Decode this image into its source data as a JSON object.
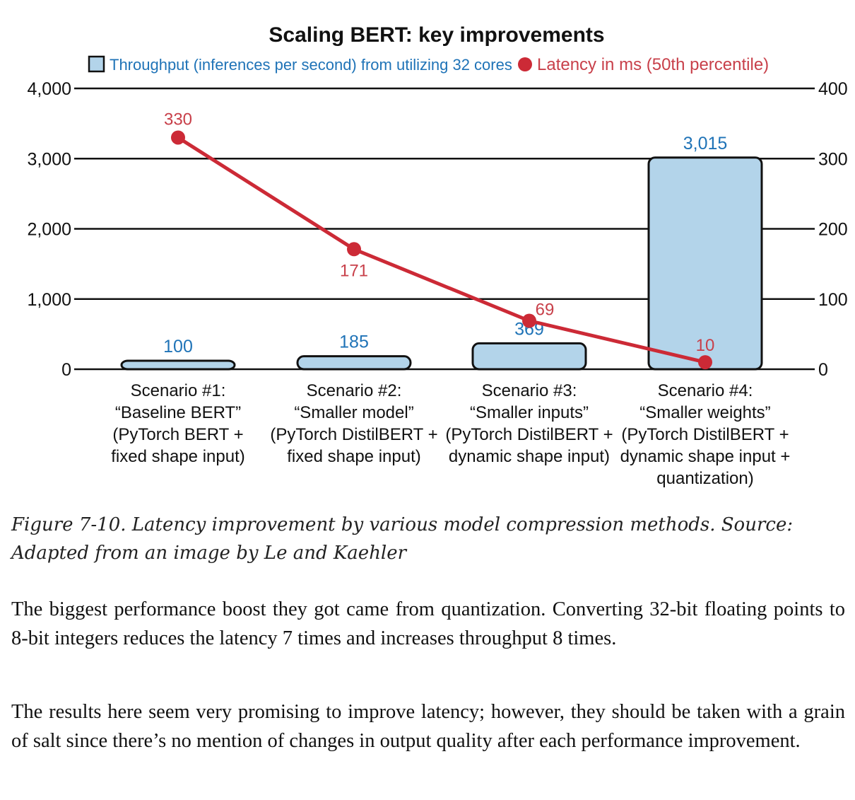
{
  "chart_data": {
    "type": "bar",
    "title": "Scaling BERT: key improvements",
    "categories": [
      [
        "Scenario #1:",
        "“Baseline BERT”",
        "(PyTorch BERT +",
        "fixed shape input)"
      ],
      [
        "Scenario #2:",
        "“Smaller model”",
        "(PyTorch DistilBERT +",
        "fixed shape input)"
      ],
      [
        "Scenario #3:",
        "“Smaller inputs”",
        "(PyTorch DistilBERT +",
        "dynamic shape input)"
      ],
      [
        "Scenario #4:",
        "“Smaller weights”",
        "(PyTorch DistilBERT +",
        "dynamic shape input +",
        "quantization)"
      ]
    ],
    "series": [
      {
        "name": "Throughput (inferences per second) from utilizing 32 cores",
        "kind": "bar",
        "axis": "left",
        "values": [
          100,
          185,
          369,
          3015
        ],
        "labels": [
          "100",
          "185",
          "369",
          "3,015"
        ],
        "color": "#b3d4ea",
        "label_color": "#1f73b7"
      },
      {
        "name": "Latency in ms (50th percentile)",
        "kind": "line",
        "axis": "right",
        "values": [
          330,
          171,
          69,
          10
        ],
        "labels": [
          "330",
          "171",
          "69",
          "10"
        ],
        "color": "#cc2a36",
        "label_color": "#c8404a"
      }
    ],
    "y_left": {
      "lim": [
        0,
        4000
      ],
      "ticks": [
        0,
        1000,
        2000,
        3000,
        4000
      ],
      "tick_labels": [
        "0",
        "1,000",
        "2,000",
        "3,000",
        "4,000"
      ]
    },
    "y_right": {
      "lim": [
        0,
        400
      ],
      "ticks": [
        0,
        100,
        200,
        300,
        400
      ],
      "tick_labels": [
        "0",
        "100",
        "200",
        "300",
        "400"
      ]
    },
    "grid": true,
    "legend_position": "top"
  },
  "caption": "Figure 7-10. Latency improvement by various model compression methods. Source: Adapted from an image by Le and Kaehler",
  "paragraphs": [
    "The biggest performance boost they got came from quantization. Converting 32-bit floating points to 8-bit integers reduces the latency 7 times and increases throughput 8 times.",
    "The results here seem very promising to improve latency; however, they should be taken with a grain of salt since there’s no mention of changes in output quality after each performance improvement."
  ]
}
